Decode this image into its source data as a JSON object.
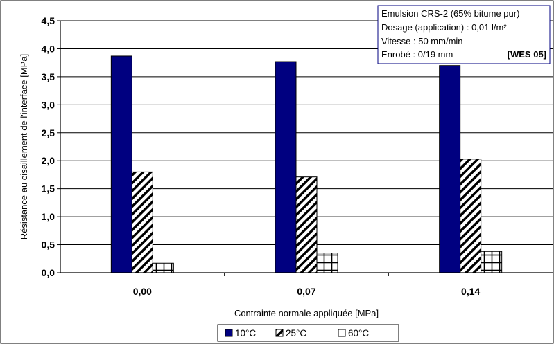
{
  "chart_data": {
    "type": "bar",
    "xlabel": "Contrainte normale appliquée [MPa]",
    "ylabel": "Résistance au cisaillement de l'interface [MPa]",
    "ylim": [
      0,
      4.5
    ],
    "yticks": [
      "0,0",
      "0,5",
      "1,0",
      "1,5",
      "2,0",
      "2,5",
      "3,0",
      "3,5",
      "4,0",
      "4,5"
    ],
    "categories": [
      "0,00",
      "0,07",
      "0,14"
    ],
    "series": [
      {
        "name": "10°C",
        "values": [
          3.87,
          3.77,
          3.7
        ],
        "color": "#000080",
        "pattern": "solid"
      },
      {
        "name": "25°C",
        "values": [
          1.8,
          1.71,
          2.03
        ],
        "color": "#000000",
        "pattern": "diagonal-hatch"
      },
      {
        "name": "60°C",
        "values": [
          0.17,
          0.35,
          0.38
        ],
        "color": "#000000",
        "pattern": "cross-hatch"
      }
    ],
    "grid": "horizontal",
    "legend_position": "bottom",
    "annotation": {
      "lines": [
        "Emulsion CRS-2 (65% bitume pur)",
        "Dosage (application) : 0,01 l/m²",
        "Vitesse : 50 mm/min",
        "Enrobé : 0/19 mm"
      ],
      "reference": "[WES 05]",
      "border_color": "#000080"
    }
  }
}
